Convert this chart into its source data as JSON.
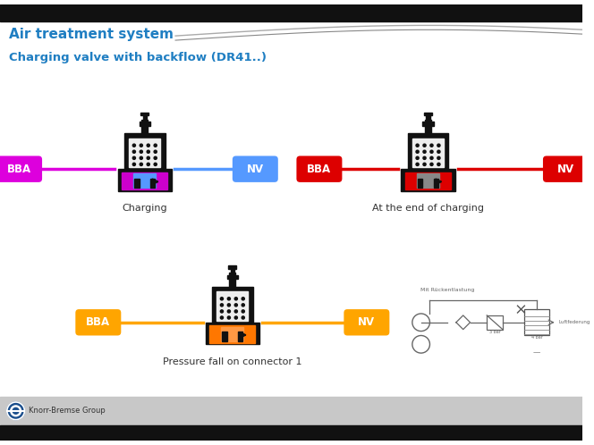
{
  "title": "Air treatment system",
  "subtitle": "Charging valve with backflow (DR41..)",
  "title_color": "#1F7EC2",
  "subtitle_color": "#1F7EC2",
  "bg_color": "#FFFFFF",
  "header_bar_color": "#111111",
  "footer_bar_color": "#111111",
  "footer_bg_color": "#C8C8C8",
  "footer_text": "Knorr-Bremse Group",
  "label_bba": "BBA",
  "label_nv": "NV",
  "caption_charging": "Charging",
  "caption_end": "At the end of charging",
  "caption_pressure": "Pressure fall on connector 1",
  "color_magenta": "#DD00DD",
  "color_blue_line": "#5599FF",
  "color_red": "#DD0000",
  "color_orange": "#FFA500",
  "color_bba_charging": "#DD00DD",
  "color_nv_charging": "#5599FF",
  "color_bba_end": "#DD0000",
  "color_nv_end": "#DD0000",
  "color_bba_pressure": "#FFA500",
  "color_nv_pressure": "#FFA500"
}
